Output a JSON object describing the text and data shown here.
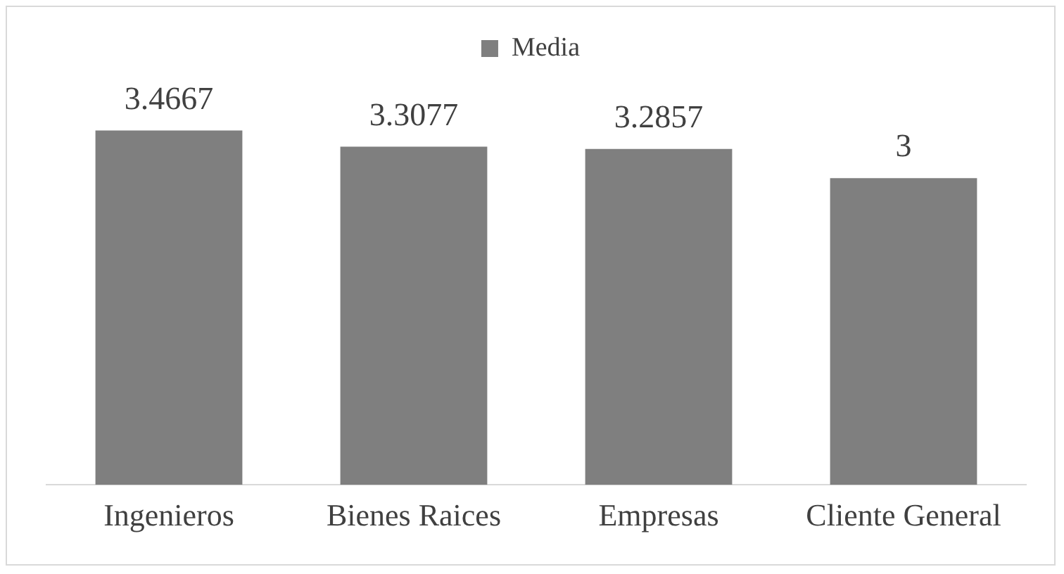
{
  "chart_data": {
    "type": "bar",
    "categories": [
      "Ingenieros",
      "Bienes Raices",
      "Empresas",
      "Cliente General"
    ],
    "series": [
      {
        "name": "Media",
        "color": "#7f7f7f",
        "values": [
          3.4667,
          3.3077,
          3.2857,
          3
        ]
      }
    ],
    "tick_labels": "x",
    "data_labels": true,
    "legend": "top",
    "grid": false
  }
}
